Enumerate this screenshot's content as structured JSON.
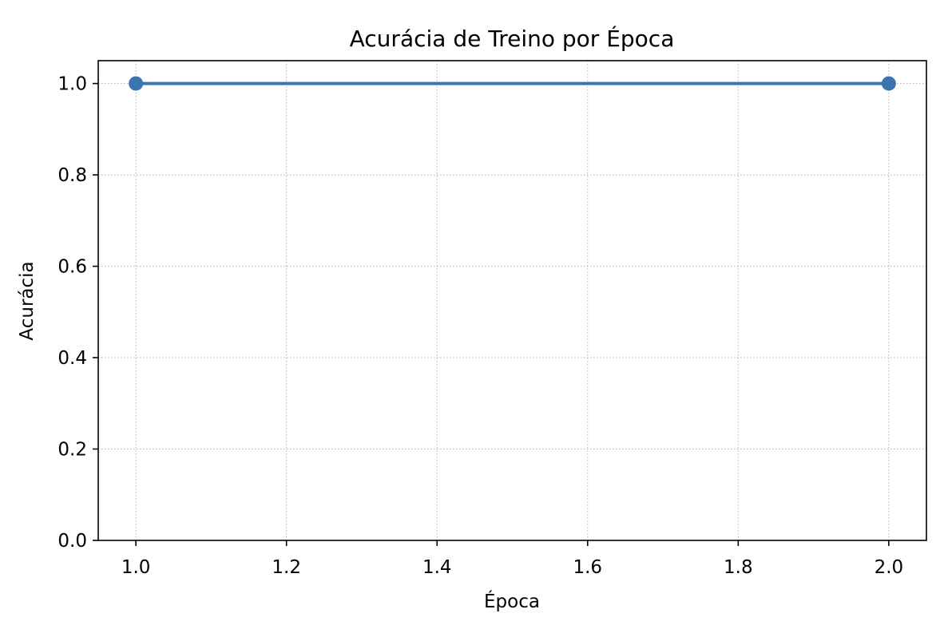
{
  "chart_data": {
    "type": "line",
    "title": "Acurácia de Treino por Época",
    "xlabel": "Época",
    "ylabel": "Acurácia",
    "xlim": [
      0.95,
      2.05
    ],
    "ylim": [
      0.0,
      1.05
    ],
    "x_ticks": [
      1.0,
      1.2,
      1.4,
      1.6,
      1.8,
      2.0
    ],
    "x_tick_labels": [
      "1.0",
      "1.2",
      "1.4",
      "1.6",
      "1.8",
      "2.0"
    ],
    "y_ticks": [
      0.0,
      0.2,
      0.4,
      0.6,
      0.8,
      1.0
    ],
    "y_tick_labels": [
      "0.0",
      "0.2",
      "0.4",
      "0.6",
      "0.8",
      "1.0"
    ],
    "grid": true,
    "grid_style": "dotted",
    "series": [
      {
        "x": [
          1,
          2
        ],
        "y": [
          1.0,
          1.0
        ],
        "color": "#3a75b0",
        "marker": "circle"
      }
    ]
  }
}
